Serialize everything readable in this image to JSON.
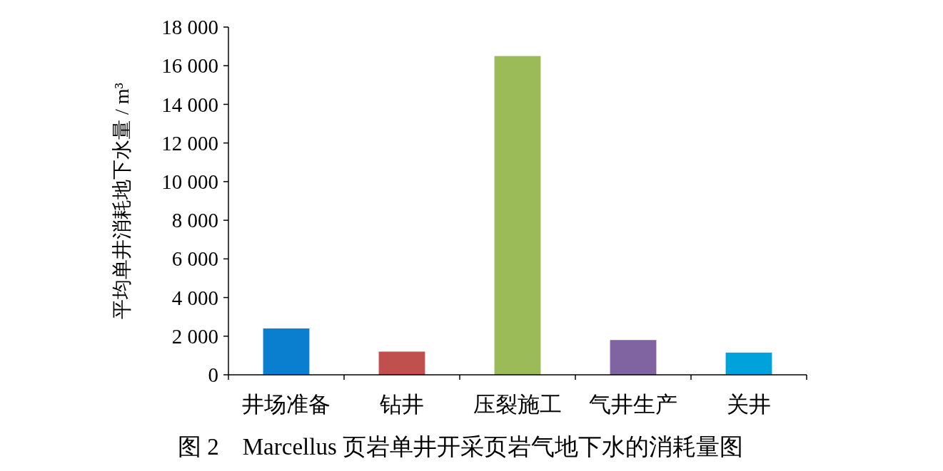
{
  "chart_data": {
    "type": "bar",
    "title": "图 2　Marcellus 页岩单井开采页岩气地下水的消耗量图",
    "ylabel": "平均单井消耗地下水量 / m³",
    "categories": [
      "井场准备",
      "钻井",
      "压裂施工",
      "气井生产",
      "关井"
    ],
    "values": [
      2400,
      1200,
      16500,
      1800,
      1150
    ],
    "colors": [
      "#0a7fcf",
      "#c0504d",
      "#9bbb59",
      "#8064a2",
      "#00a2db"
    ],
    "ylim": [
      0,
      18000
    ],
    "yticks": [
      {
        "value": 0,
        "label": "0"
      },
      {
        "value": 2000,
        "label": "2 000"
      },
      {
        "value": 4000,
        "label": "4 000"
      },
      {
        "value": 6000,
        "label": "6 000"
      },
      {
        "value": 8000,
        "label": "8 000"
      },
      {
        "value": 10000,
        "label": "10 000"
      },
      {
        "value": 12000,
        "label": "12 000"
      },
      {
        "value": 14000,
        "label": "14 000"
      },
      {
        "value": 16000,
        "label": "16 000"
      },
      {
        "value": 18000,
        "label": "18 000"
      }
    ],
    "grid": false
  }
}
